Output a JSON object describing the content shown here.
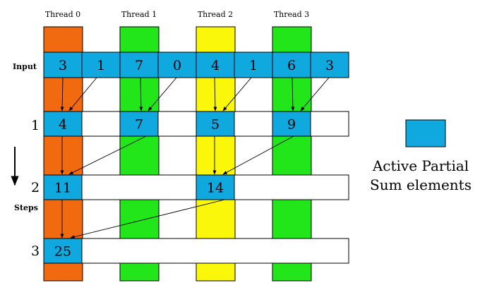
{
  "threads": [
    "Thread 0",
    "Thread 1",
    "Thread 2",
    "Thread 3"
  ],
  "row_labels": {
    "input": "Input",
    "steps": "Steps",
    "steps_numbers": [
      "1",
      "2",
      "3"
    ]
  },
  "input_values": [
    "3",
    "1",
    "7",
    "0",
    "4",
    "1",
    "6",
    "3"
  ],
  "steps": [
    {
      "values": [
        "4",
        "",
        "7",
        "",
        "5",
        "",
        "9",
        ""
      ]
    },
    {
      "values": [
        "11",
        "",
        "",
        "",
        "14",
        "",
        "",
        ""
      ]
    },
    {
      "values": [
        "25",
        "",
        "",
        "",
        "",
        "",
        "",
        ""
      ]
    }
  ],
  "legend": {
    "line1": "Active Partial",
    "line2": "Sum elements"
  },
  "colors": {
    "thread_columns": [
      "#f26a10",
      "#22e61a",
      "#fbf70a",
      "#22e61a"
    ],
    "active_cell": "#0fa8df",
    "inactive_cell": "#ffffff",
    "stroke": "#000000"
  }
}
